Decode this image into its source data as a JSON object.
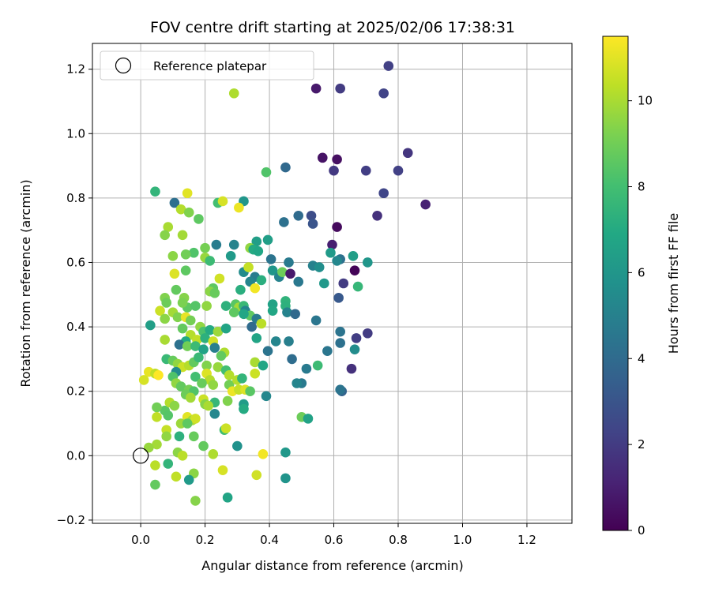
{
  "chart_data": {
    "type": "scatter",
    "title": "FOV centre drift starting at 2025/02/06 17:38:31",
    "xlabel": "Angular distance from reference (arcmin)",
    "ylabel": "Rotation from reference (arcmin)",
    "xlim": [
      -0.15,
      1.34
    ],
    "ylim": [
      -0.21,
      1.28
    ],
    "xticks": [
      "0.0",
      "0.2",
      "0.4",
      "0.6",
      "0.8",
      "1.0",
      "1.2"
    ],
    "yticks": [
      "−0.2",
      "0.0",
      "0.2",
      "0.4",
      "0.6",
      "0.8",
      "1.0",
      "1.2"
    ],
    "grid": true,
    "legend": {
      "location": "top-left",
      "entries": [
        "Reference platepar"
      ]
    },
    "reference_point": {
      "x": 0.0,
      "y": 0.0
    },
    "colorbar": {
      "label": "Hours from first FF file",
      "min": 0,
      "max": 11.5,
      "ticks": [
        "0",
        "2",
        "4",
        "6",
        "8",
        "10"
      ],
      "colormap": "viridis"
    },
    "points": [
      {
        "x": 0.77,
        "y": 1.21,
        "h": 2.2
      },
      {
        "x": 0.545,
        "y": 1.14,
        "h": 0.8
      },
      {
        "x": 0.62,
        "y": 1.14,
        "h": 2.0
      },
      {
        "x": 0.755,
        "y": 1.125,
        "h": 2.3
      },
      {
        "x": 0.29,
        "y": 1.125,
        "h": 10.1
      },
      {
        "x": 0.565,
        "y": 0.925,
        "h": 0.6
      },
      {
        "x": 0.61,
        "y": 0.92,
        "h": 0.5
      },
      {
        "x": 0.83,
        "y": 0.94,
        "h": 1.8
      },
      {
        "x": 0.45,
        "y": 0.895,
        "h": 3.9
      },
      {
        "x": 0.6,
        "y": 0.885,
        "h": 1.9
      },
      {
        "x": 0.7,
        "y": 0.885,
        "h": 2.1
      },
      {
        "x": 0.8,
        "y": 0.885,
        "h": 2.2
      },
      {
        "x": 0.39,
        "y": 0.88,
        "h": 8.3
      },
      {
        "x": 0.755,
        "y": 0.815,
        "h": 2.4
      },
      {
        "x": 0.885,
        "y": 0.78,
        "h": 1.1
      },
      {
        "x": 0.735,
        "y": 0.745,
        "h": 1.6
      },
      {
        "x": 0.045,
        "y": 0.82,
        "h": 7.5
      },
      {
        "x": 0.145,
        "y": 0.815,
        "h": 11.0
      },
      {
        "x": 0.105,
        "y": 0.785,
        "h": 4.2
      },
      {
        "x": 0.32,
        "y": 0.79,
        "h": 6.0
      },
      {
        "x": 0.24,
        "y": 0.785,
        "h": 8.0
      },
      {
        "x": 0.255,
        "y": 0.79,
        "h": 10.8
      },
      {
        "x": 0.125,
        "y": 0.765,
        "h": 10.2
      },
      {
        "x": 0.305,
        "y": 0.77,
        "h": 11.2
      },
      {
        "x": 0.15,
        "y": 0.755,
        "h": 9.3
      },
      {
        "x": 0.18,
        "y": 0.735,
        "h": 8.6
      },
      {
        "x": 0.085,
        "y": 0.71,
        "h": 10.0
      },
      {
        "x": 0.075,
        "y": 0.685,
        "h": 9.4
      },
      {
        "x": 0.13,
        "y": 0.685,
        "h": 9.9
      },
      {
        "x": 0.49,
        "y": 0.745,
        "h": 4.0
      },
      {
        "x": 0.53,
        "y": 0.745,
        "h": 2.7
      },
      {
        "x": 0.535,
        "y": 0.72,
        "h": 3.0
      },
      {
        "x": 0.445,
        "y": 0.725,
        "h": 4.3
      },
      {
        "x": 0.61,
        "y": 0.71,
        "h": 0.3
      },
      {
        "x": 0.595,
        "y": 0.655,
        "h": 1.0
      },
      {
        "x": 0.395,
        "y": 0.67,
        "h": 6.4
      },
      {
        "x": 0.29,
        "y": 0.655,
        "h": 5.1
      },
      {
        "x": 0.36,
        "y": 0.665,
        "h": 6.4
      },
      {
        "x": 0.235,
        "y": 0.655,
        "h": 4.8
      },
      {
        "x": 0.2,
        "y": 0.645,
        "h": 9.1
      },
      {
        "x": 0.34,
        "y": 0.645,
        "h": 9.6
      },
      {
        "x": 0.35,
        "y": 0.64,
        "h": 7.0
      },
      {
        "x": 0.165,
        "y": 0.63,
        "h": 8.3
      },
      {
        "x": 0.2,
        "y": 0.615,
        "h": 9.7
      },
      {
        "x": 0.14,
        "y": 0.625,
        "h": 9.0
      },
      {
        "x": 0.1,
        "y": 0.62,
        "h": 9.5
      },
      {
        "x": 0.28,
        "y": 0.62,
        "h": 6.2
      },
      {
        "x": 0.215,
        "y": 0.605,
        "h": 7.8
      },
      {
        "x": 0.365,
        "y": 0.635,
        "h": 6.8
      },
      {
        "x": 0.59,
        "y": 0.63,
        "h": 6.2
      },
      {
        "x": 0.62,
        "y": 0.61,
        "h": 4.3
      },
      {
        "x": 0.66,
        "y": 0.62,
        "h": 6.4
      },
      {
        "x": 0.705,
        "y": 0.6,
        "h": 6.0
      },
      {
        "x": 0.405,
        "y": 0.61,
        "h": 4.4
      },
      {
        "x": 0.46,
        "y": 0.6,
        "h": 4.7
      },
      {
        "x": 0.535,
        "y": 0.59,
        "h": 5.0
      },
      {
        "x": 0.555,
        "y": 0.585,
        "h": 5.6
      },
      {
        "x": 0.61,
        "y": 0.605,
        "h": 5.3
      },
      {
        "x": 0.14,
        "y": 0.575,
        "h": 8.6
      },
      {
        "x": 0.105,
        "y": 0.565,
        "h": 10.9
      },
      {
        "x": 0.32,
        "y": 0.57,
        "h": 5.5
      },
      {
        "x": 0.335,
        "y": 0.585,
        "h": 10.5
      },
      {
        "x": 0.41,
        "y": 0.575,
        "h": 6.0
      },
      {
        "x": 0.43,
        "y": 0.555,
        "h": 5.1
      },
      {
        "x": 0.44,
        "y": 0.57,
        "h": 8.9
      },
      {
        "x": 0.465,
        "y": 0.565,
        "h": 0.8
      },
      {
        "x": 0.49,
        "y": 0.54,
        "h": 4.6
      },
      {
        "x": 0.355,
        "y": 0.555,
        "h": 4.8
      },
      {
        "x": 0.375,
        "y": 0.545,
        "h": 7.2
      },
      {
        "x": 0.34,
        "y": 0.54,
        "h": 5.2
      },
      {
        "x": 0.63,
        "y": 0.535,
        "h": 2.0
      },
      {
        "x": 0.57,
        "y": 0.535,
        "h": 6.1
      },
      {
        "x": 0.665,
        "y": 0.575,
        "h": 0.1
      },
      {
        "x": 0.675,
        "y": 0.525,
        "h": 7.6
      },
      {
        "x": 0.245,
        "y": 0.55,
        "h": 10.7
      },
      {
        "x": 0.225,
        "y": 0.52,
        "h": 8.6
      },
      {
        "x": 0.215,
        "y": 0.51,
        "h": 9.5
      },
      {
        "x": 0.11,
        "y": 0.515,
        "h": 8.7
      },
      {
        "x": 0.355,
        "y": 0.52,
        "h": 11.3
      },
      {
        "x": 0.31,
        "y": 0.515,
        "h": 7.2
      },
      {
        "x": 0.23,
        "y": 0.505,
        "h": 8.8
      },
      {
        "x": 0.45,
        "y": 0.48,
        "h": 7.4
      },
      {
        "x": 0.41,
        "y": 0.47,
        "h": 6.6
      },
      {
        "x": 0.45,
        "y": 0.465,
        "h": 7.3
      },
      {
        "x": 0.41,
        "y": 0.45,
        "h": 6.8
      },
      {
        "x": 0.455,
        "y": 0.445,
        "h": 5.1
      },
      {
        "x": 0.48,
        "y": 0.44,
        "h": 3.9
      },
      {
        "x": 0.545,
        "y": 0.42,
        "h": 4.5
      },
      {
        "x": 0.615,
        "y": 0.49,
        "h": 3.2
      },
      {
        "x": 0.075,
        "y": 0.49,
        "h": 9.3
      },
      {
        "x": 0.135,
        "y": 0.49,
        "h": 9.4
      },
      {
        "x": 0.08,
        "y": 0.475,
        "h": 8.9
      },
      {
        "x": 0.06,
        "y": 0.45,
        "h": 10.6
      },
      {
        "x": 0.145,
        "y": 0.46,
        "h": 8.6
      },
      {
        "x": 0.13,
        "y": 0.475,
        "h": 9.2
      },
      {
        "x": 0.17,
        "y": 0.465,
        "h": 8.4
      },
      {
        "x": 0.205,
        "y": 0.465,
        "h": 9.6
      },
      {
        "x": 0.265,
        "y": 0.465,
        "h": 7.3
      },
      {
        "x": 0.295,
        "y": 0.47,
        "h": 8.5
      },
      {
        "x": 0.305,
        "y": 0.46,
        "h": 9.9
      },
      {
        "x": 0.32,
        "y": 0.465,
        "h": 7.7
      },
      {
        "x": 0.325,
        "y": 0.45,
        "h": 5.2
      },
      {
        "x": 0.29,
        "y": 0.445,
        "h": 8.6
      },
      {
        "x": 0.34,
        "y": 0.435,
        "h": 8.6
      },
      {
        "x": 0.36,
        "y": 0.425,
        "h": 4.8
      },
      {
        "x": 0.375,
        "y": 0.41,
        "h": 10.3
      },
      {
        "x": 0.345,
        "y": 0.4,
        "h": 4.0
      },
      {
        "x": 0.32,
        "y": 0.44,
        "h": 6.8
      },
      {
        "x": 0.1,
        "y": 0.445,
        "h": 9.9
      },
      {
        "x": 0.115,
        "y": 0.43,
        "h": 9.3
      },
      {
        "x": 0.14,
        "y": 0.43,
        "h": 11.1
      },
      {
        "x": 0.155,
        "y": 0.42,
        "h": 9.1
      },
      {
        "x": 0.075,
        "y": 0.425,
        "h": 9.5
      },
      {
        "x": 0.03,
        "y": 0.405,
        "h": 6.4
      },
      {
        "x": 0.13,
        "y": 0.395,
        "h": 8.7
      },
      {
        "x": 0.185,
        "y": 0.4,
        "h": 9.6
      },
      {
        "x": 0.195,
        "y": 0.385,
        "h": 8.2
      },
      {
        "x": 0.215,
        "y": 0.39,
        "h": 7.0
      },
      {
        "x": 0.24,
        "y": 0.385,
        "h": 9.8
      },
      {
        "x": 0.265,
        "y": 0.395,
        "h": 6.7
      },
      {
        "x": 0.155,
        "y": 0.375,
        "h": 10.2
      },
      {
        "x": 0.175,
        "y": 0.36,
        "h": 10.4
      },
      {
        "x": 0.2,
        "y": 0.365,
        "h": 7.3
      },
      {
        "x": 0.225,
        "y": 0.355,
        "h": 10.7
      },
      {
        "x": 0.14,
        "y": 0.355,
        "h": 6.9
      },
      {
        "x": 0.12,
        "y": 0.345,
        "h": 4.3
      },
      {
        "x": 0.145,
        "y": 0.34,
        "h": 9.0
      },
      {
        "x": 0.17,
        "y": 0.34,
        "h": 7.8
      },
      {
        "x": 0.195,
        "y": 0.33,
        "h": 6.6
      },
      {
        "x": 0.23,
        "y": 0.335,
        "h": 4.9
      },
      {
        "x": 0.26,
        "y": 0.32,
        "h": 10.1
      },
      {
        "x": 0.25,
        "y": 0.31,
        "h": 8.7
      },
      {
        "x": 0.075,
        "y": 0.36,
        "h": 10.0
      },
      {
        "x": 0.08,
        "y": 0.3,
        "h": 7.7
      },
      {
        "x": 0.1,
        "y": 0.295,
        "h": 8.8
      },
      {
        "x": 0.115,
        "y": 0.285,
        "h": 9.6
      },
      {
        "x": 0.13,
        "y": 0.275,
        "h": 10.6
      },
      {
        "x": 0.15,
        "y": 0.28,
        "h": 10.2
      },
      {
        "x": 0.165,
        "y": 0.29,
        "h": 8.7
      },
      {
        "x": 0.18,
        "y": 0.305,
        "h": 7.7
      },
      {
        "x": 0.205,
        "y": 0.28,
        "h": 9.3
      },
      {
        "x": 0.24,
        "y": 0.275,
        "h": 9.7
      },
      {
        "x": 0.265,
        "y": 0.265,
        "h": 8.0
      },
      {
        "x": 0.275,
        "y": 0.25,
        "h": 10.2
      },
      {
        "x": 0.11,
        "y": 0.26,
        "h": 5.5
      },
      {
        "x": 0.17,
        "y": 0.245,
        "h": 8.0
      },
      {
        "x": 0.205,
        "y": 0.255,
        "h": 10.9
      },
      {
        "x": 0.215,
        "y": 0.235,
        "h": 10.2
      },
      {
        "x": 0.19,
        "y": 0.225,
        "h": 8.8
      },
      {
        "x": 0.225,
        "y": 0.22,
        "h": 9.6
      },
      {
        "x": 0.275,
        "y": 0.22,
        "h": 9.0
      },
      {
        "x": 0.3,
        "y": 0.235,
        "h": 10.2
      },
      {
        "x": 0.315,
        "y": 0.24,
        "h": 7.5
      },
      {
        "x": 0.285,
        "y": 0.2,
        "h": 11.2
      },
      {
        "x": 0.305,
        "y": 0.205,
        "h": 10.5
      },
      {
        "x": 0.325,
        "y": 0.205,
        "h": 10.9
      },
      {
        "x": 0.34,
        "y": 0.2,
        "h": 8.5
      },
      {
        "x": 0.025,
        "y": 0.26,
        "h": 11.1
      },
      {
        "x": 0.045,
        "y": 0.255,
        "h": 10.4
      },
      {
        "x": 0.055,
        "y": 0.25,
        "h": 11.5
      },
      {
        "x": 0.01,
        "y": 0.235,
        "h": 10.8
      },
      {
        "x": 0.1,
        "y": 0.245,
        "h": 8.3
      },
      {
        "x": 0.11,
        "y": 0.225,
        "h": 9.6
      },
      {
        "x": 0.125,
        "y": 0.215,
        "h": 8.7
      },
      {
        "x": 0.15,
        "y": 0.205,
        "h": 9.1
      },
      {
        "x": 0.165,
        "y": 0.2,
        "h": 8.3
      },
      {
        "x": 0.14,
        "y": 0.19,
        "h": 8.9
      },
      {
        "x": 0.155,
        "y": 0.18,
        "h": 9.9
      },
      {
        "x": 0.195,
        "y": 0.175,
        "h": 10.6
      },
      {
        "x": 0.2,
        "y": 0.16,
        "h": 9.4
      },
      {
        "x": 0.23,
        "y": 0.165,
        "h": 7.6
      },
      {
        "x": 0.27,
        "y": 0.17,
        "h": 9.3
      },
      {
        "x": 0.32,
        "y": 0.16,
        "h": 6.3
      },
      {
        "x": 0.32,
        "y": 0.145,
        "h": 7.0
      },
      {
        "x": 0.075,
        "y": 0.14,
        "h": 8.5
      },
      {
        "x": 0.05,
        "y": 0.15,
        "h": 9.0
      },
      {
        "x": 0.09,
        "y": 0.165,
        "h": 10.2
      },
      {
        "x": 0.105,
        "y": 0.155,
        "h": 9.5
      },
      {
        "x": 0.05,
        "y": 0.12,
        "h": 10.4
      },
      {
        "x": 0.085,
        "y": 0.125,
        "h": 8.4
      },
      {
        "x": 0.145,
        "y": 0.12,
        "h": 11.0
      },
      {
        "x": 0.16,
        "y": 0.11,
        "h": 10.0
      },
      {
        "x": 0.17,
        "y": 0.115,
        "h": 10.7
      },
      {
        "x": 0.125,
        "y": 0.1,
        "h": 9.8
      },
      {
        "x": 0.145,
        "y": 0.1,
        "h": 8.6
      },
      {
        "x": 0.08,
        "y": 0.08,
        "h": 10.5
      },
      {
        "x": 0.08,
        "y": 0.06,
        "h": 9.6
      },
      {
        "x": 0.12,
        "y": 0.06,
        "h": 7.3
      },
      {
        "x": 0.165,
        "y": 0.06,
        "h": 8.8
      },
      {
        "x": 0.26,
        "y": 0.08,
        "h": 7.9
      },
      {
        "x": 0.265,
        "y": 0.085,
        "h": 10.6
      },
      {
        "x": 0.23,
        "y": 0.13,
        "h": 5.3
      },
      {
        "x": 0.21,
        "y": 0.155,
        "h": 10.0
      },
      {
        "x": 0.05,
        "y": 0.035,
        "h": 9.9
      },
      {
        "x": 0.025,
        "y": 0.025,
        "h": 9.7
      },
      {
        "x": 0.115,
        "y": 0.01,
        "h": 9.5
      },
      {
        "x": 0.13,
        "y": 0.0,
        "h": 10.3
      },
      {
        "x": 0.195,
        "y": 0.03,
        "h": 8.7
      },
      {
        "x": 0.225,
        "y": 0.005,
        "h": 10.1
      },
      {
        "x": 0.045,
        "y": -0.03,
        "h": 10.3
      },
      {
        "x": 0.085,
        "y": -0.025,
        "h": 7.5
      },
      {
        "x": 0.255,
        "y": -0.045,
        "h": 10.8
      },
      {
        "x": 0.11,
        "y": -0.065,
        "h": 10.4
      },
      {
        "x": 0.165,
        "y": -0.055,
        "h": 9.5
      },
      {
        "x": 0.15,
        "y": -0.075,
        "h": 6.2
      },
      {
        "x": 0.045,
        "y": -0.09,
        "h": 8.7
      },
      {
        "x": 0.17,
        "y": -0.14,
        "h": 9.4
      },
      {
        "x": 0.27,
        "y": -0.13,
        "h": 6.7
      },
      {
        "x": 0.36,
        "y": -0.06,
        "h": 10.7
      },
      {
        "x": 0.38,
        "y": 0.005,
        "h": 11.3
      },
      {
        "x": 0.45,
        "y": 0.01,
        "h": 6.1
      },
      {
        "x": 0.45,
        "y": -0.07,
        "h": 5.9
      },
      {
        "x": 0.3,
        "y": 0.03,
        "h": 5.8
      },
      {
        "x": 0.5,
        "y": 0.12,
        "h": 8.9
      },
      {
        "x": 0.52,
        "y": 0.115,
        "h": 6.6
      },
      {
        "x": 0.5,
        "y": 0.225,
        "h": 4.7
      },
      {
        "x": 0.485,
        "y": 0.225,
        "h": 5.2
      },
      {
        "x": 0.55,
        "y": 0.28,
        "h": 7.8
      },
      {
        "x": 0.625,
        "y": 0.2,
        "h": 3.7
      },
      {
        "x": 0.62,
        "y": 0.205,
        "h": 4.4
      },
      {
        "x": 0.515,
        "y": 0.27,
        "h": 4.7
      },
      {
        "x": 0.47,
        "y": 0.3,
        "h": 4.1
      },
      {
        "x": 0.39,
        "y": 0.185,
        "h": 5.3
      },
      {
        "x": 0.355,
        "y": 0.255,
        "h": 10.6
      },
      {
        "x": 0.355,
        "y": 0.29,
        "h": 10.0
      },
      {
        "x": 0.38,
        "y": 0.28,
        "h": 6.8
      },
      {
        "x": 0.395,
        "y": 0.325,
        "h": 4.4
      },
      {
        "x": 0.42,
        "y": 0.355,
        "h": 5.2
      },
      {
        "x": 0.46,
        "y": 0.355,
        "h": 4.9
      },
      {
        "x": 0.36,
        "y": 0.365,
        "h": 6.7
      },
      {
        "x": 0.58,
        "y": 0.325,
        "h": 4.5
      },
      {
        "x": 0.62,
        "y": 0.35,
        "h": 4.3
      },
      {
        "x": 0.665,
        "y": 0.33,
        "h": 5.5
      },
      {
        "x": 0.67,
        "y": 0.365,
        "h": 2.1
      },
      {
        "x": 0.705,
        "y": 0.38,
        "h": 2.0
      },
      {
        "x": 0.62,
        "y": 0.385,
        "h": 4.4
      },
      {
        "x": 0.655,
        "y": 0.27,
        "h": 1.6
      }
    ]
  }
}
